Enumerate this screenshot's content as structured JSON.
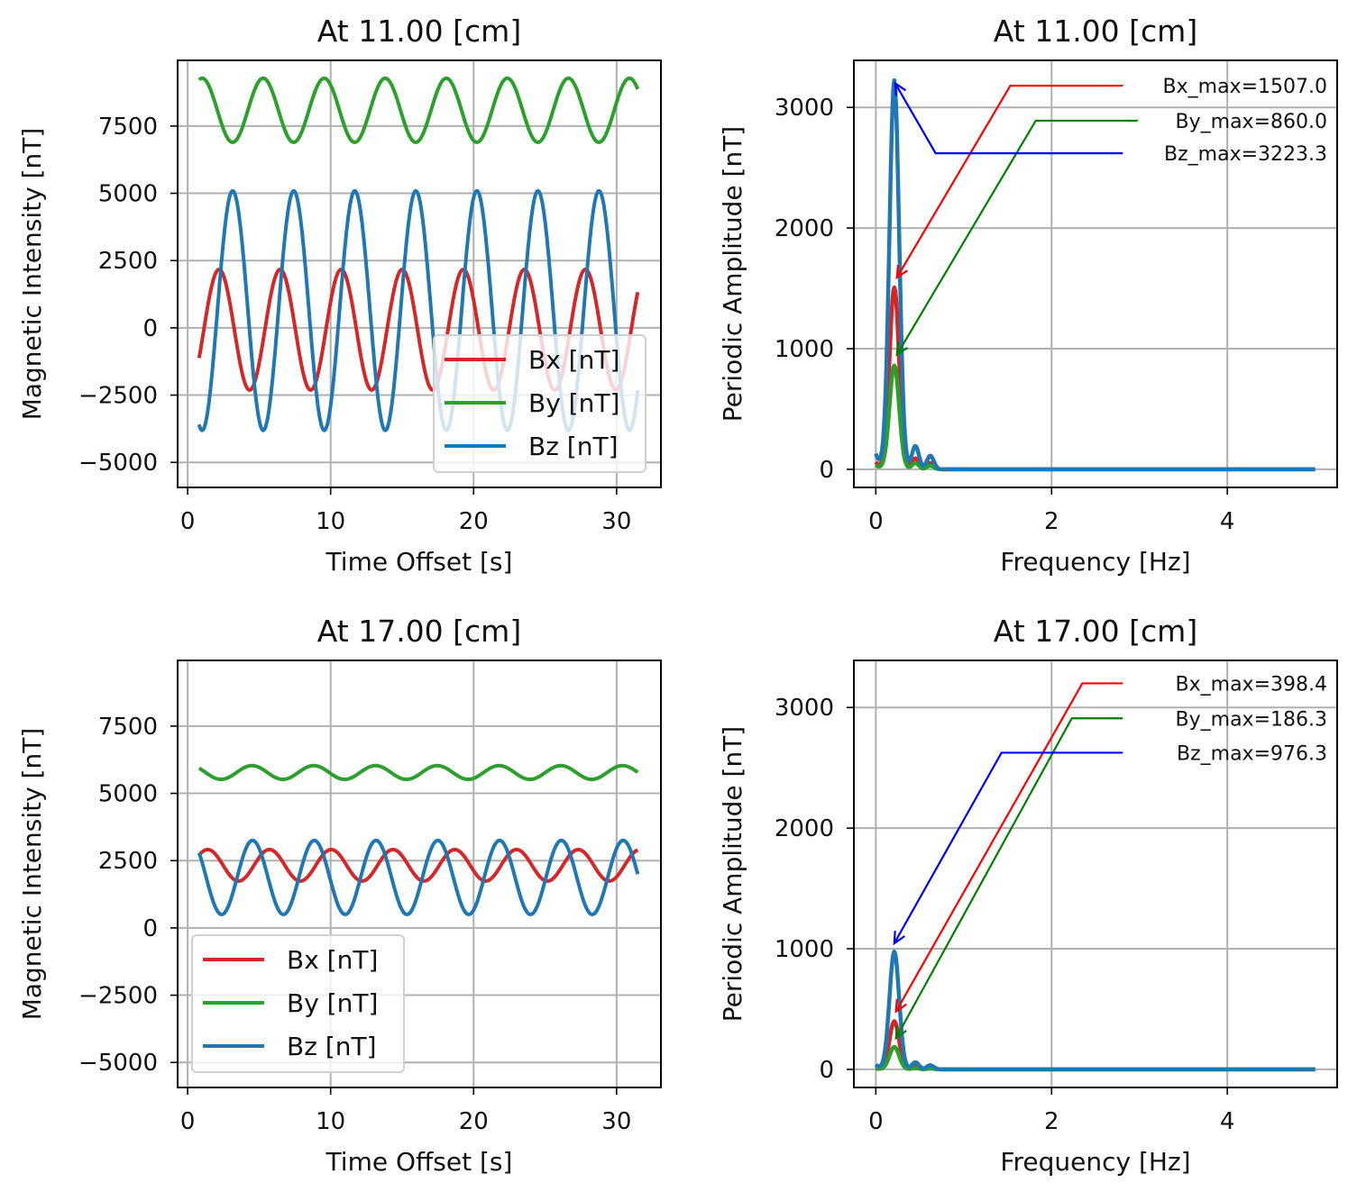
{
  "chart_data": [
    {
      "id": "ts_top",
      "type": "line",
      "title": "At 11.00 [cm]",
      "xlabel": "Time Offset [s]",
      "ylabel": "Magnetic Intensity [nT]",
      "xlim": [
        -0.7,
        33.1
      ],
      "ylim": [
        -5930,
        9940
      ],
      "xticks": [
        0,
        10,
        20,
        30
      ],
      "xtick_labels": [
        "0",
        "10",
        "20",
        "30"
      ],
      "yticks": [
        -5000,
        -2500,
        0,
        2500,
        5000,
        7500
      ],
      "ytick_labels": [
        "−5000",
        "−2500",
        "0",
        "2500",
        "5000",
        "7500"
      ],
      "grid": true,
      "legend": "lower-right",
      "t_range": [
        0.8,
        31.5
      ],
      "series": [
        {
          "name": "Bx [nT]",
          "color": "#d62728",
          "model": "sinusoid",
          "mean": -70,
          "amplitude": 2240,
          "period_s": 4.27,
          "peak_time_s": 2.2
        },
        {
          "name": "By [nT]",
          "color": "#2ca02c",
          "model": "sinusoid",
          "mean": 8085,
          "amplitude": 1190,
          "period_s": 4.27,
          "peak_time_s": 5.28
        },
        {
          "name": "Bz [nT]",
          "color": "#1f77b4",
          "model": "sinusoid",
          "mean": 640,
          "amplitude": 4450,
          "period_s": 4.27,
          "peak_time_s": 3.15
        }
      ]
    },
    {
      "id": "fft_top",
      "type": "line",
      "title": "At 11.00 [cm]",
      "xlabel": "Frequency [Hz]",
      "ylabel": "Periodic Amplitude [nT]",
      "xlim": [
        -0.25,
        5.25
      ],
      "ylim": [
        -150,
        3390
      ],
      "xticks": [
        0,
        2,
        4
      ],
      "xtick_labels": [
        "0",
        "2",
        "4"
      ],
      "yticks": [
        0,
        1000,
        2000,
        3000
      ],
      "ytick_labels": [
        "0",
        "1000",
        "2000",
        "3000"
      ],
      "grid": true,
      "f_range": [
        0,
        5
      ],
      "peak_frequency_hz": 0.21,
      "series": [
        {
          "name": "Bx",
          "color": "#d62728",
          "peak": 1507.0
        },
        {
          "name": "By",
          "color": "#2ca02c",
          "peak": 860.0
        },
        {
          "name": "Bz",
          "color": "#1f77b4",
          "peak": 3223.3
        }
      ],
      "annotations": [
        {
          "text": "Bx_max=1507.0",
          "color": "#ff0000"
        },
        {
          "text": "By_max=860.0",
          "color": "#008000"
        },
        {
          "text": "Bz_max=3223.3",
          "color": "#0000ff"
        }
      ]
    },
    {
      "id": "ts_bottom",
      "type": "line",
      "title": "At 17.00 [cm]",
      "xlabel": "Time Offset [s]",
      "ylabel": "Magnetic Intensity [nT]",
      "xlim": [
        -0.7,
        33.1
      ],
      "ylim": [
        -5930,
        9940
      ],
      "xticks": [
        0,
        10,
        20,
        30
      ],
      "xtick_labels": [
        "0",
        "10",
        "20",
        "30"
      ],
      "yticks": [
        -5000,
        -2500,
        0,
        2500,
        5000,
        7500
      ],
      "ytick_labels": [
        "−5000",
        "−2500",
        "0",
        "2500",
        "5000",
        "7500"
      ],
      "grid": true,
      "legend": "lower-left",
      "t_range": [
        0.8,
        31.5
      ],
      "series": [
        {
          "name": "Bx [nT]",
          "color": "#d62728",
          "model": "sinusoid",
          "mean": 2325,
          "amplitude": 585,
          "period_s": 4.32,
          "peak_time_s": 1.4
        },
        {
          "name": "By [nT]",
          "color": "#2ca02c",
          "model": "sinusoid",
          "mean": 5775,
          "amplitude": 255,
          "period_s": 4.32,
          "peak_time_s": 4.5
        },
        {
          "name": "Bz [nT]",
          "color": "#1f77b4",
          "model": "sinusoid",
          "mean": 1875,
          "amplitude": 1375,
          "period_s": 4.32,
          "peak_time_s": 4.54
        }
      ]
    },
    {
      "id": "fft_bottom",
      "type": "line",
      "title": "At 17.00 [cm]",
      "xlabel": "Frequency [Hz]",
      "ylabel": "Periodic Amplitude [nT]",
      "xlim": [
        -0.25,
        5.25
      ],
      "ylim": [
        -150,
        3390
      ],
      "xticks": [
        0,
        2,
        4
      ],
      "xtick_labels": [
        "0",
        "2",
        "4"
      ],
      "yticks": [
        0,
        1000,
        2000,
        3000
      ],
      "ytick_labels": [
        "0",
        "1000",
        "2000",
        "3000"
      ],
      "grid": true,
      "f_range": [
        0,
        5
      ],
      "peak_frequency_hz": 0.21,
      "series": [
        {
          "name": "Bx",
          "color": "#d62728",
          "peak": 398.4
        },
        {
          "name": "By",
          "color": "#2ca02c",
          "peak": 186.3
        },
        {
          "name": "Bz",
          "color": "#1f77b4",
          "peak": 976.3
        }
      ],
      "annotations": [
        {
          "text": "Bx_max=398.4",
          "color": "#ff0000"
        },
        {
          "text": "By_max=186.3",
          "color": "#008000"
        },
        {
          "text": "Bz_max=976.3",
          "color": "#0000ff"
        }
      ]
    }
  ]
}
